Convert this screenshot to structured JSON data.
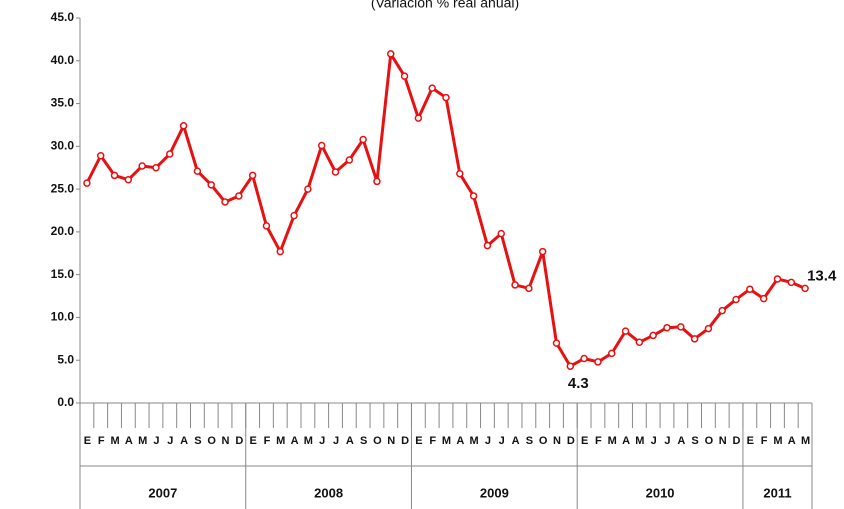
{
  "chart_data": {
    "type": "line",
    "subtitle": "(Variación % real anual)",
    "categories": [
      "E",
      "F",
      "M",
      "A",
      "M",
      "J",
      "J",
      "A",
      "S",
      "O",
      "N",
      "D",
      "E",
      "F",
      "M",
      "A",
      "M",
      "J",
      "J",
      "A",
      "S",
      "O",
      "N",
      "D",
      "E",
      "F",
      "M",
      "A",
      "M",
      "J",
      "J",
      "A",
      "S",
      "O",
      "N",
      "D",
      "E",
      "F",
      "M",
      "A",
      "M",
      "J",
      "J",
      "A",
      "S",
      "O",
      "N",
      "D",
      "E",
      "F",
      "M",
      "A",
      "M"
    ],
    "years": [
      "2007",
      "2008",
      "2009",
      "2010",
      "2011"
    ],
    "series": [
      {
        "color": "#e81010",
        "values": [
          25.7,
          28.9,
          26.6,
          26.1,
          27.7,
          27.5,
          29.1,
          32.4,
          27.1,
          25.5,
          23.5,
          24.2,
          26.6,
          20.7,
          17.7,
          21.9,
          25.0,
          30.1,
          27.0,
          28.4,
          30.8,
          25.9,
          40.8,
          38.2,
          33.3,
          36.8,
          35.7,
          26.8,
          24.2,
          18.4,
          19.8,
          13.8,
          13.4,
          17.7,
          7.0,
          4.3,
          5.2,
          4.8,
          5.8,
          8.4,
          7.1,
          7.9,
          8.8,
          8.9,
          7.5,
          8.7,
          10.8,
          12.1,
          13.3,
          12.2,
          14.5,
          14.1,
          13.4
        ]
      }
    ],
    "ylim": [
      0,
      45
    ],
    "yticks": [
      {
        "value": 0,
        "label": "0.0"
      },
      {
        "value": 5,
        "label": "5.0"
      },
      {
        "value": 10,
        "label": "10.0"
      },
      {
        "value": 15,
        "label": "15.0"
      },
      {
        "value": 20,
        "label": "20.0"
      },
      {
        "value": 25,
        "label": "25.0"
      },
      {
        "value": 30,
        "label": "30.0"
      },
      {
        "value": 35,
        "label": "35.0"
      },
      {
        "value": 40,
        "label": "40.0"
      },
      {
        "value": 45,
        "label": "45.0"
      }
    ]
  }
}
